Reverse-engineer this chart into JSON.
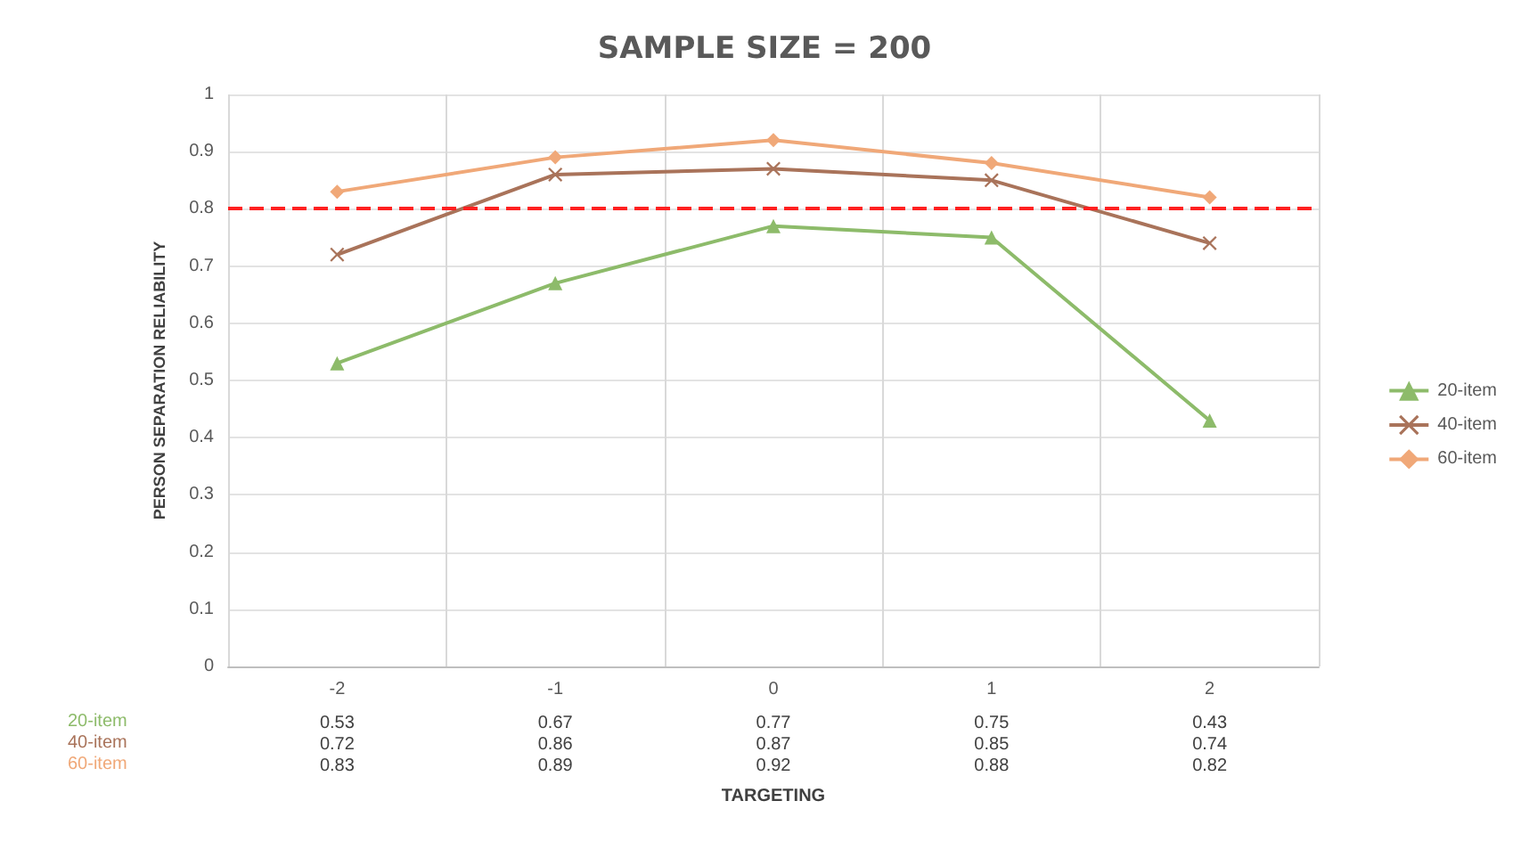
{
  "chart_data": {
    "type": "line",
    "title": "SAMPLE SIZE = 200",
    "xlabel": "TARGETING",
    "ylabel": "PERSON SEPARATION RELIABILITY",
    "categories": [
      "-2",
      "-1",
      "0",
      "1",
      "2"
    ],
    "series": [
      {
        "name": "20-item",
        "color": "#8dbb6a",
        "marker": "triangle",
        "values": [
          0.53,
          0.67,
          0.77,
          0.75,
          0.43
        ]
      },
      {
        "name": "40-item",
        "color": "#a9735a",
        "marker": "cross",
        "values": [
          0.72,
          0.86,
          0.87,
          0.85,
          0.74
        ]
      },
      {
        "name": "60-item",
        "color": "#f0a878",
        "marker": "diamond",
        "values": [
          0.83,
          0.89,
          0.92,
          0.88,
          0.82
        ]
      }
    ],
    "ylim": [
      0,
      1
    ],
    "yticks": [
      0,
      0.1,
      0.2,
      0.3,
      0.4,
      0.5,
      0.6,
      0.7,
      0.8,
      0.9,
      1
    ],
    "ref_lines": [
      {
        "axis": "y",
        "value": 0.8,
        "color": "#ff2020",
        "line_style": "dashed"
      }
    ],
    "grid": true,
    "legend": "right",
    "data_labels": true
  }
}
